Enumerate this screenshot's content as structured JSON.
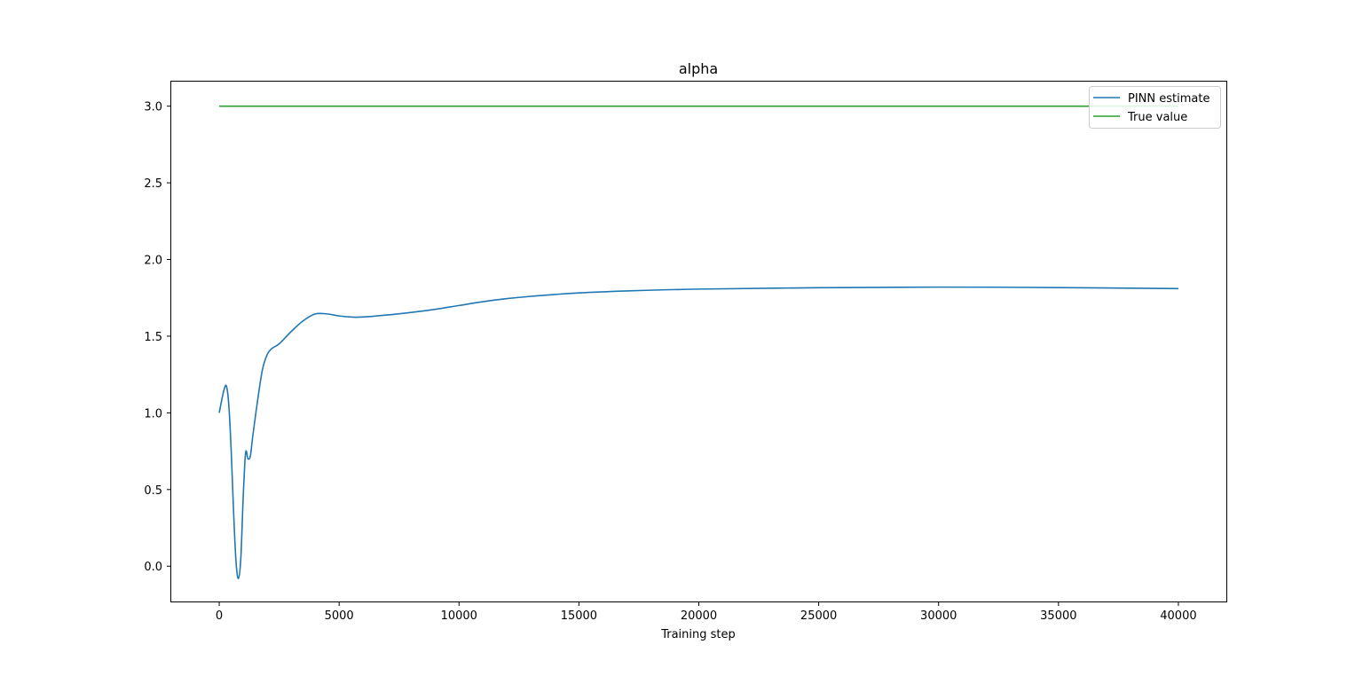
{
  "chart_data": {
    "type": "line",
    "title": "alpha",
    "xlabel": "Training step",
    "ylabel": "",
    "xlim": [
      -2000,
      42000
    ],
    "ylim": [
      -0.23,
      3.16
    ],
    "xticks": [
      0,
      5000,
      10000,
      15000,
      20000,
      25000,
      30000,
      35000,
      40000
    ],
    "xtick_labels": [
      "0",
      "5000",
      "10000",
      "15000",
      "20000",
      "25000",
      "30000",
      "35000",
      "40000"
    ],
    "yticks": [
      0.0,
      0.5,
      1.0,
      1.5,
      2.0,
      2.5,
      3.0
    ],
    "ytick_labels": [
      "0.0",
      "0.5",
      "1.0",
      "1.5",
      "2.0",
      "2.5",
      "3.0"
    ],
    "grid": false,
    "legend_position": "top-right",
    "series": [
      {
        "name": "PINN estimate",
        "color": "#1f77b4",
        "x": [
          0,
          100,
          200,
          300,
          400,
          500,
          600,
          700,
          800,
          900,
          1000,
          1100,
          1200,
          1300,
          1400,
          1600,
          1800,
          2000,
          2200,
          2500,
          3000,
          3500,
          4000,
          4500,
          5000,
          5500,
          6000,
          7000,
          8000,
          9000,
          10000,
          11000,
          12000,
          13000,
          14000,
          15000,
          17000,
          20000,
          25000,
          30000,
          35000,
          40000
        ],
        "y": [
          1.0,
          1.08,
          1.15,
          1.175,
          1.05,
          0.75,
          0.35,
          0.03,
          -0.08,
          0.05,
          0.45,
          0.74,
          0.7,
          0.72,
          0.85,
          1.08,
          1.28,
          1.38,
          1.42,
          1.45,
          1.53,
          1.6,
          1.645,
          1.645,
          1.632,
          1.625,
          1.625,
          1.638,
          1.655,
          1.675,
          1.7,
          1.725,
          1.745,
          1.76,
          1.772,
          1.782,
          1.795,
          1.807,
          1.816,
          1.82,
          1.817,
          1.81
        ]
      },
      {
        "name": "True value",
        "color": "#2ca02c",
        "x": [
          0,
          40000
        ],
        "y": [
          3.0,
          3.0
        ]
      }
    ]
  }
}
